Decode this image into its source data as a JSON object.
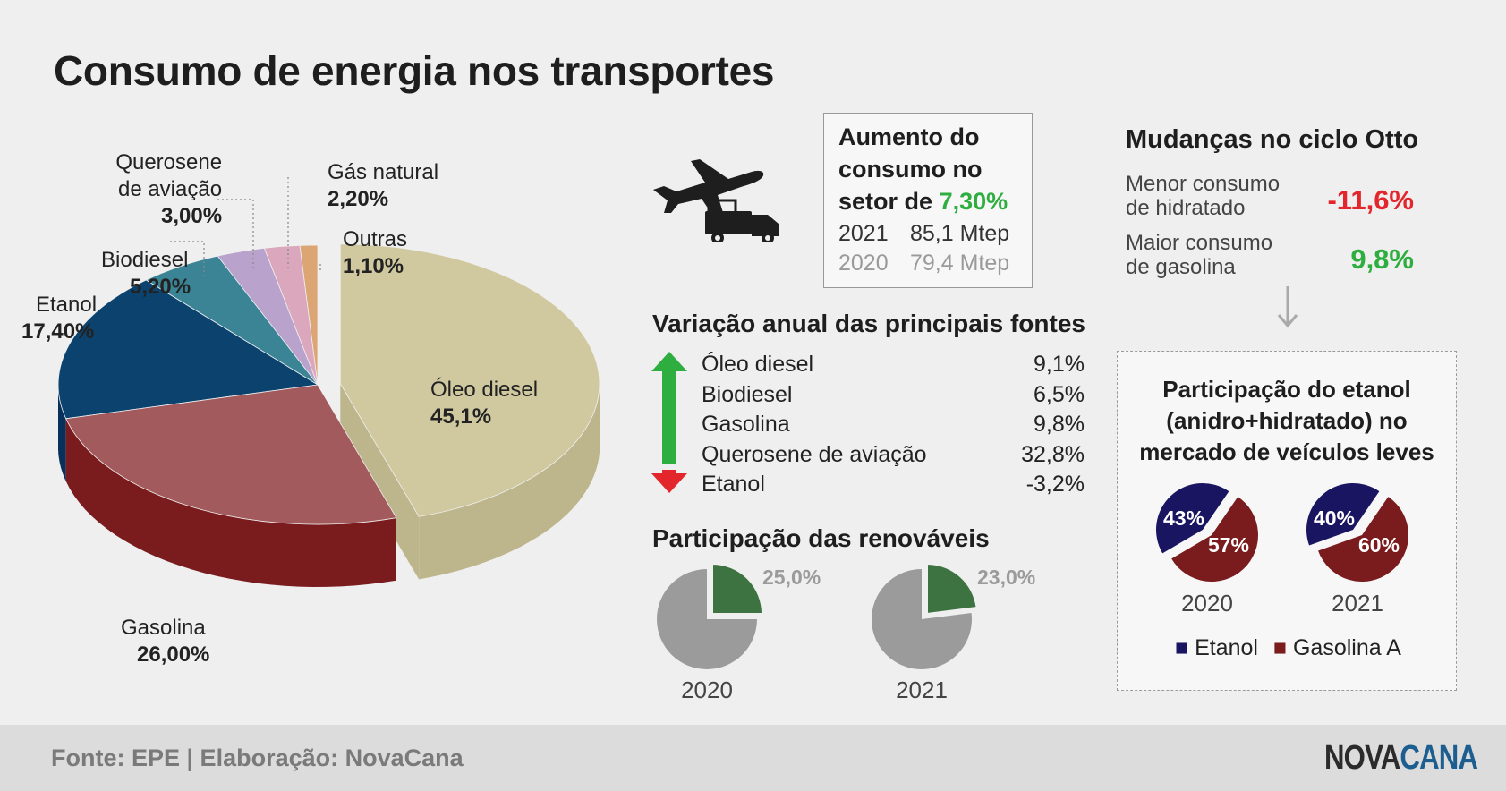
{
  "title": "Consumo de energia nos transportes",
  "colors": {
    "diesel": "#d0c9a0",
    "diesel_side": "#bdb58c",
    "gasolina": "#a35a5d",
    "gasolina_side": "#7a1c1e",
    "etanol": "#0b426e",
    "etanol_side": "#08305a",
    "biodiesel": "#3a8496",
    "biodiesel_side": "#2a6270",
    "querosene": "#b9a2cc",
    "querosene_side": "#8c78a0",
    "gas_natural": "#dba7bd",
    "gas_natural_side": "#b57e96",
    "outras": "#dba574",
    "outras_side": "#b67c4c",
    "green": "#2eae3e",
    "red": "#e2262c",
    "renov": "#3c7340",
    "gray_pie": "#9b9b9b",
    "eth_etanol": "#1a1560",
    "eth_gasolina": "#7a1c1e"
  },
  "chart_data": [
    {
      "type": "pie",
      "title": "Consumo de energia nos transportes",
      "slices": [
        {
          "key": "diesel",
          "name": "Óleo diesel",
          "value": 45.1,
          "label": "45,1%"
        },
        {
          "key": "gasolina",
          "name": "Gasolina",
          "value": 26.0,
          "label": "26,00%"
        },
        {
          "key": "etanol",
          "name": "Etanol",
          "value": 17.4,
          "label": "17,40%"
        },
        {
          "key": "biodiesel",
          "name": "Biodiesel",
          "value": 5.2,
          "label": "5,20%"
        },
        {
          "key": "querosene",
          "name": "Querosene de aviação",
          "value": 3.0,
          "label": "3,00%"
        },
        {
          "key": "gas_natural",
          "name": "Gás natural",
          "value": 2.2,
          "label": "2,20%"
        },
        {
          "key": "outras",
          "name": "Outras",
          "value": 1.1,
          "label": "1,10%"
        }
      ]
    },
    {
      "type": "table",
      "title": "Variação anual das principais fontes",
      "rows": [
        {
          "name": "Óleo diesel",
          "value": "9,1%"
        },
        {
          "name": "Biodiesel",
          "value": "6,5%"
        },
        {
          "name": "Gasolina",
          "value": "9,8%"
        },
        {
          "name": "Querosene de aviação",
          "value": "32,8%"
        },
        {
          "name": "Etanol",
          "value": "-3,2%"
        }
      ]
    },
    {
      "type": "pie",
      "title": "Participação das renováveis",
      "pies": [
        {
          "year": "2020",
          "value": 25.0,
          "label": "25,0%"
        },
        {
          "year": "2021",
          "value": 23.0,
          "label": "23,0%"
        }
      ]
    },
    {
      "type": "pie",
      "title": "Participação do etanol (anidro+hidratado) no mercado de veículos leves",
      "legend": [
        "Etanol",
        "Gasolina A"
      ],
      "pies": [
        {
          "year": "2020",
          "etanol": 43,
          "gasolina": 57,
          "etanol_label": "43%",
          "gasolina_label": "57%"
        },
        {
          "year": "2021",
          "etanol": 40,
          "gasolina": 60,
          "etanol_label": "40%",
          "gasolina_label": "60%"
        }
      ]
    }
  ],
  "labels": {
    "querosene_l1": "Querosene",
    "querosene_l2": "de aviação"
  },
  "increase": {
    "line1": "Aumento do",
    "line2": "consumo no",
    "line3": "setor de",
    "value": "7,30%",
    "rows": [
      {
        "year": "2021",
        "value": "85,1 Mtep"
      },
      {
        "year": "2020",
        "value": "79,4 Mtep"
      }
    ]
  },
  "variation_title": "Variação anual das principais fontes",
  "renov_title": "Participação das renováveis",
  "otto": {
    "title": "Mudanças no ciclo Otto",
    "items": [
      {
        "l1": "Menor consumo",
        "l2": "de hidratado",
        "value": "-11,6%"
      },
      {
        "l1": "Maior consumo",
        "l2": "de gasolina",
        "value": "9,8%"
      }
    ]
  },
  "eth": {
    "t1": "Participação do etanol",
    "t2": "(anidro+hidratado) no",
    "t3": "mercado de veículos leves",
    "legend_etanol": "Etanol",
    "legend_gasolina": "Gasolina A"
  },
  "footer": {
    "source": "Fonte: EPE | Elaboração: NovaCana",
    "logo_a": "NOVA",
    "logo_b": "CANA"
  }
}
